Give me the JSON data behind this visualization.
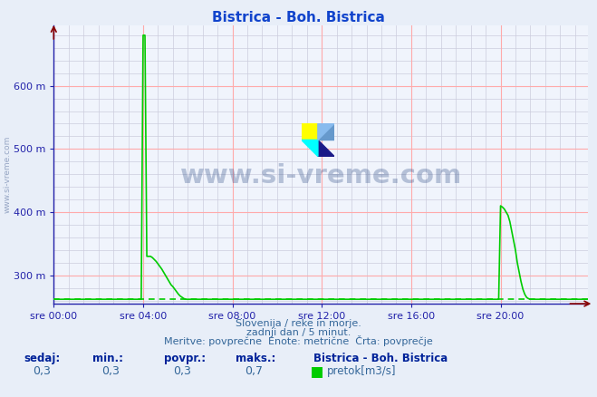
{
  "title": "Bistrica - Boh. Bistrica",
  "fig_bg_color": "#e8eef8",
  "plot_bg_color": "#f0f4fc",
  "grid_color_major": "#ffaaaa",
  "grid_color_minor": "#ccccdd",
  "line_color": "#00cc00",
  "avg_line_color": "#00cc00",
  "axis_color": "#2222aa",
  "title_color": "#1144cc",
  "yticks": [
    300,
    400,
    500,
    600
  ],
  "ylim": [
    255,
    695
  ],
  "yavg": 262,
  "xlabel_ticks": [
    "sre 00:00",
    "sre 04:00",
    "sre 08:00",
    "sre 12:00",
    "sre 16:00",
    "sre 20:00"
  ],
  "xtick_positions": [
    0,
    48,
    96,
    144,
    192,
    240
  ],
  "watermark_text": "www.si-vreme.com",
  "watermark_color": "#1a3a7a",
  "watermark_alpha": 0.28,
  "left_watermark_color": "#8899bb",
  "footer_line1": "Slovenija / reke in morje.",
  "footer_line2": "zadnji dan / 5 minut.",
  "footer_line3": "Meritve: povprečne  Enote: metrične  Črta: povprečje",
  "footer_color": "#336699",
  "legend_station": "Bistrica - Boh. Bistrica",
  "legend_series": "pretok[m3/s]",
  "stats_labels": [
    "sedaj:",
    "min.:",
    "povpr.:",
    "maks.:"
  ],
  "stats_values": [
    "0,3",
    "0,3",
    "0,3",
    "0,7"
  ],
  "num_points": 288,
  "arrow_color": "#880000"
}
